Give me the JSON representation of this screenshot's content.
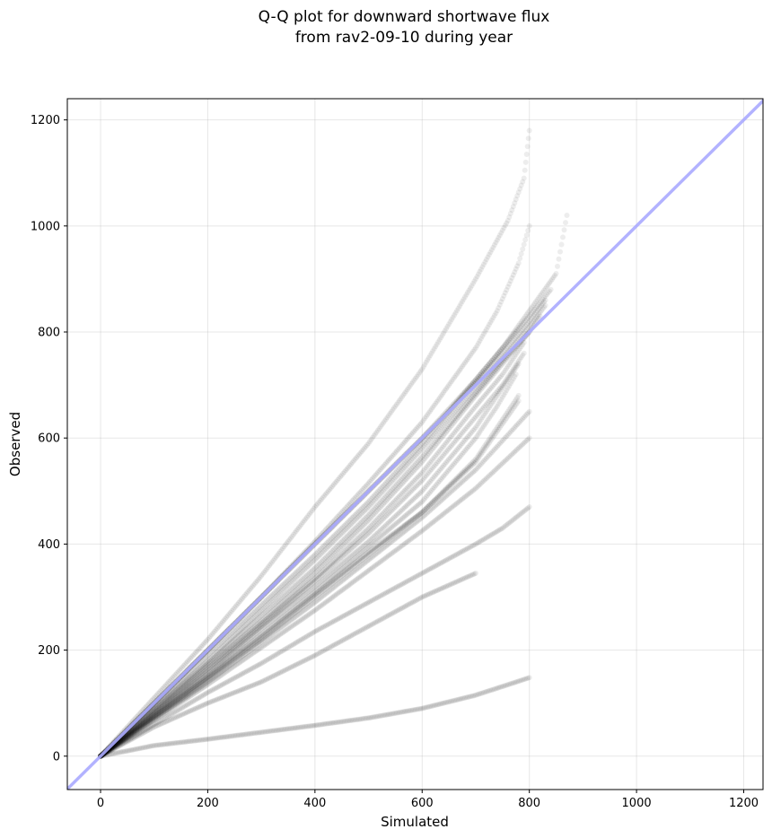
{
  "chart_data": {
    "type": "scatter",
    "title": [
      "Q-Q plot for downward shortwave flux",
      "from rav2-09-10 during year"
    ],
    "xlabel": "Simulated",
    "ylabel": "Observed",
    "xlim": [
      -62,
      1236
    ],
    "ylim": [
      -63,
      1240
    ],
    "xticks": [
      0,
      200,
      400,
      600,
      800,
      1000,
      1200
    ],
    "yticks": [
      0,
      200,
      400,
      600,
      800,
      1000,
      1200
    ],
    "grid": true,
    "reference_line": {
      "kind": "y=x",
      "color": "#aaaaff"
    },
    "marker_color": "#000000",
    "marker_alpha": 0.07,
    "series": [
      {
        "x": [
          0,
          100,
          200,
          300,
          400,
          500,
          600,
          700,
          760,
          790,
          800
        ],
        "y": [
          0,
          110,
          220,
          340,
          470,
          590,
          730,
          900,
          1010,
          1090,
          1180
        ]
      },
      {
        "x": [
          0,
          100,
          200,
          300,
          400,
          500,
          600,
          650,
          700,
          740,
          780,
          800
        ],
        "y": [
          0,
          100,
          200,
          300,
          405,
          515,
          630,
          700,
          770,
          840,
          930,
          1000
        ]
      },
      {
        "x": [
          0,
          100,
          200,
          300,
          400,
          500,
          600,
          650,
          700,
          750,
          800,
          830
        ],
        "y": [
          0,
          100,
          200,
          300,
          400,
          500,
          600,
          650,
          705,
          760,
          820,
          860
        ]
      },
      {
        "x": [
          0,
          100,
          200,
          300,
          400,
          500,
          600,
          650,
          700,
          750,
          800,
          850,
          870
        ],
        "y": [
          0,
          100,
          200,
          300,
          400,
          500,
          600,
          655,
          710,
          770,
          840,
          910,
          1020
        ]
      },
      {
        "x": [
          0,
          100,
          200,
          300,
          400,
          500,
          600,
          650,
          700,
          750,
          800,
          840
        ],
        "y": [
          0,
          95,
          190,
          285,
          380,
          480,
          590,
          650,
          710,
          770,
          830,
          880
        ]
      },
      {
        "x": [
          0,
          100,
          200,
          300,
          400,
          500,
          600,
          700,
          750,
          800,
          830
        ],
        "y": [
          0,
          90,
          180,
          275,
          370,
          470,
          580,
          695,
          750,
          810,
          850
        ]
      },
      {
        "x": [
          0,
          100,
          200,
          300,
          400,
          500,
          600,
          700,
          750,
          800,
          820
        ],
        "y": [
          0,
          88,
          175,
          265,
          355,
          455,
          565,
          685,
          745,
          800,
          830
        ]
      },
      {
        "x": [
          0,
          100,
          200,
          300,
          400,
          500,
          600,
          700,
          750,
          800
        ],
        "y": [
          0,
          85,
          170,
          255,
          345,
          445,
          555,
          680,
          740,
          800
        ]
      },
      {
        "x": [
          0,
          100,
          200,
          300,
          400,
          500,
          600,
          700,
          750,
          790
        ],
        "y": [
          0,
          82,
          165,
          250,
          335,
          430,
          535,
          660,
          720,
          780
        ]
      },
      {
        "x": [
          0,
          100,
          200,
          300,
          400,
          500,
          600,
          700,
          750,
          790
        ],
        "y": [
          0,
          80,
          160,
          245,
          330,
          420,
          520,
          640,
          700,
          760
        ]
      },
      {
        "x": [
          0,
          100,
          200,
          300,
          400,
          500,
          600,
          700,
          740,
          780
        ],
        "y": [
          0,
          78,
          155,
          240,
          320,
          405,
          500,
          620,
          680,
          740
        ]
      },
      {
        "x": [
          0,
          100,
          200,
          300,
          400,
          500,
          600,
          650,
          700,
          740,
          775
        ],
        "y": [
          0,
          75,
          150,
          230,
          310,
          395,
          480,
          540,
          600,
          660,
          720
        ]
      },
      {
        "x": [
          0,
          100,
          200,
          300,
          400,
          500,
          600,
          700,
          780
        ],
        "y": [
          0,
          75,
          148,
          225,
          305,
          385,
          460,
          560,
          680
        ]
      },
      {
        "x": [
          0,
          100,
          200,
          300,
          400,
          500,
          600,
          700,
          780
        ],
        "y": [
          0,
          72,
          145,
          220,
          300,
          380,
          460,
          555,
          670
        ]
      },
      {
        "x": [
          0,
          100,
          200,
          300,
          400,
          500,
          600,
          700,
          800
        ],
        "y": [
          0,
          70,
          140,
          215,
          290,
          370,
          450,
          540,
          650
        ]
      },
      {
        "x": [
          0,
          100,
          200,
          300,
          400,
          500,
          600,
          700,
          800
        ],
        "y": [
          0,
          68,
          135,
          205,
          275,
          350,
          425,
          505,
          600
        ]
      },
      {
        "x": [
          0,
          100,
          200,
          300,
          400,
          500,
          600,
          700,
          750,
          800
        ],
        "y": [
          0,
          60,
          120,
          175,
          235,
          290,
          345,
          400,
          430,
          470
        ]
      },
      {
        "x": [
          0,
          100,
          200,
          300,
          400,
          500,
          600,
          700
        ],
        "y": [
          0,
          55,
          100,
          140,
          190,
          245,
          300,
          345
        ]
      },
      {
        "x": [
          0,
          100,
          200,
          300,
          400,
          500,
          600,
          700,
          800
        ],
        "y": [
          0,
          20,
          32,
          45,
          58,
          72,
          90,
          115,
          148
        ]
      }
    ]
  }
}
